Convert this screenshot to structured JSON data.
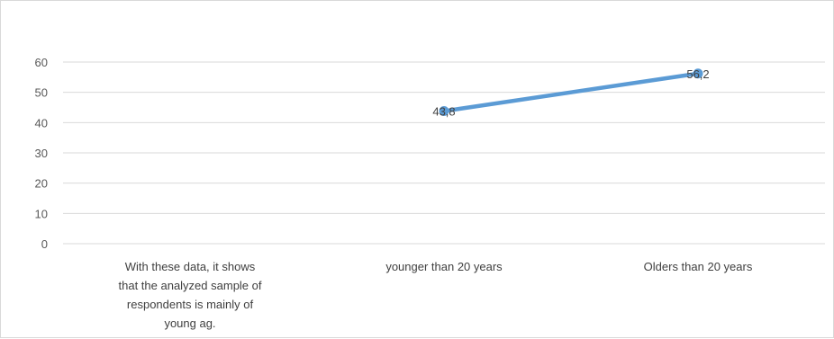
{
  "chart_data": {
    "type": "line",
    "categories": [
      [
        "With these data, it shows",
        "that the analyzed sample of",
        "respondents is mainly of",
        "young ag."
      ],
      [
        "younger than 20 years"
      ],
      [
        "Olders than 20 years"
      ]
    ],
    "values": [
      null,
      43.8,
      56.2
    ],
    "data_labels": [
      "",
      "43,8",
      "56,2"
    ],
    "ylim": [
      0,
      60
    ],
    "yticks": [
      0,
      10,
      20,
      30,
      40,
      50,
      60
    ],
    "grid": true,
    "legend": "none",
    "series_color": "#5b9bd5",
    "grid_color": "#d9d9d9",
    "text_color": "#595959"
  }
}
